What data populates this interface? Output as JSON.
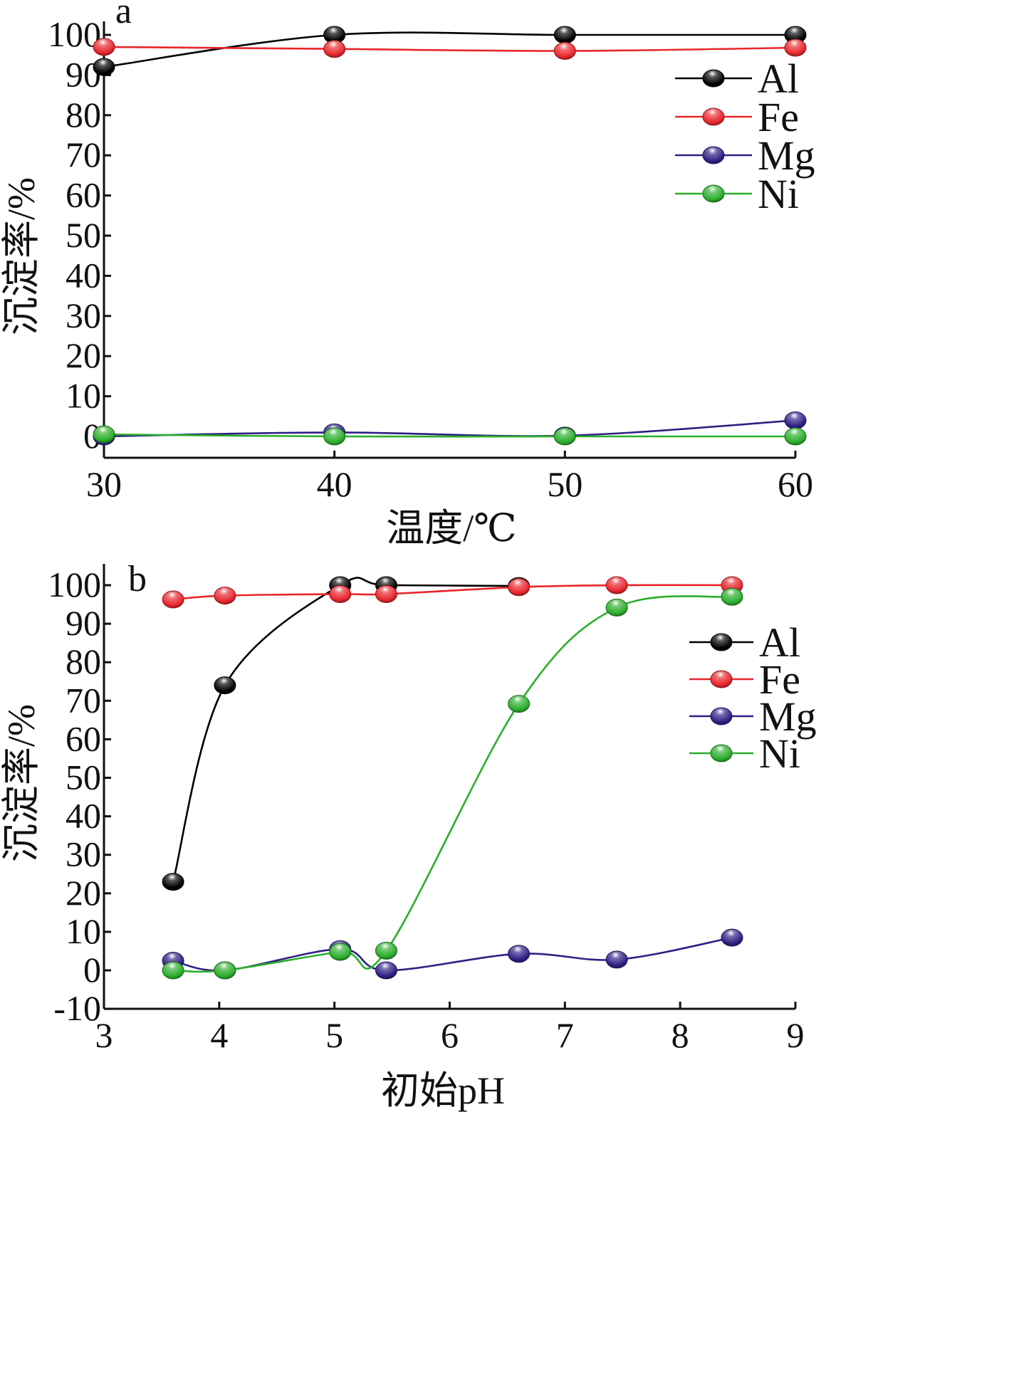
{
  "chart_data": [
    {
      "panel": "a",
      "type": "line",
      "xlabel": "温度/℃",
      "ylabel": "沉淀率/%",
      "x": [
        30,
        40,
        50,
        60
      ],
      "xticks": [
        30,
        40,
        50,
        60
      ],
      "xlim": [
        30,
        60
      ],
      "ylim": [
        -5,
        105
      ],
      "yticks": [
        0,
        10,
        20,
        30,
        40,
        50,
        60,
        70,
        80,
        90,
        100
      ],
      "legend_position": "top-right",
      "series": [
        {
          "name": "Al",
          "color": "#000000",
          "values": [
            92,
            100,
            100,
            100
          ]
        },
        {
          "name": "Fe",
          "color": "#e8262c",
          "values": [
            97,
            96.5,
            96,
            96.8
          ]
        },
        {
          "name": "Mg",
          "color": "#2f1f85",
          "values": [
            0,
            1,
            0.2,
            4
          ]
        },
        {
          "name": "Ni",
          "color": "#2bae2b",
          "values": [
            0.5,
            0,
            0,
            0
          ]
        }
      ]
    },
    {
      "panel": "b",
      "type": "line",
      "xlabel": "初始pH",
      "ylabel": "沉淀率/%",
      "xticks": [
        3,
        4,
        5,
        6,
        7,
        8,
        9
      ],
      "xlim": [
        3,
        9
      ],
      "ylim": [
        -10,
        105
      ],
      "yticks": [
        -10,
        0,
        10,
        20,
        30,
        40,
        50,
        60,
        70,
        80,
        90,
        100
      ],
      "legend_position": "upper-right",
      "series": [
        {
          "name": "Al",
          "color": "#000000",
          "x": [
            3.6,
            4.05,
            5.05,
            5.45,
            6.6
          ],
          "values": [
            23,
            74,
            100,
            100,
            99.8
          ]
        },
        {
          "name": "Fe",
          "color": "#e8262c",
          "x": [
            3.6,
            4.05,
            5.05,
            5.45,
            6.6,
            7.45,
            8.45
          ],
          "values": [
            96.3,
            97.3,
            97.7,
            97.7,
            99.5,
            100,
            100
          ]
        },
        {
          "name": "Mg",
          "color": "#2f1f85",
          "x": [
            3.6,
            4.05,
            5.05,
            5.45,
            6.6,
            7.45,
            8.45
          ],
          "values": [
            2.5,
            0,
            5.5,
            0,
            4.3,
            2.8,
            8.5
          ]
        },
        {
          "name": "Ni",
          "color": "#2bae2b",
          "x": [
            3.6,
            4.05,
            5.05,
            5.45,
            6.6,
            7.45,
            8.45
          ],
          "values": [
            0,
            0,
            4.8,
            5.1,
            69.2,
            94.2,
            97
          ]
        }
      ]
    }
  ]
}
